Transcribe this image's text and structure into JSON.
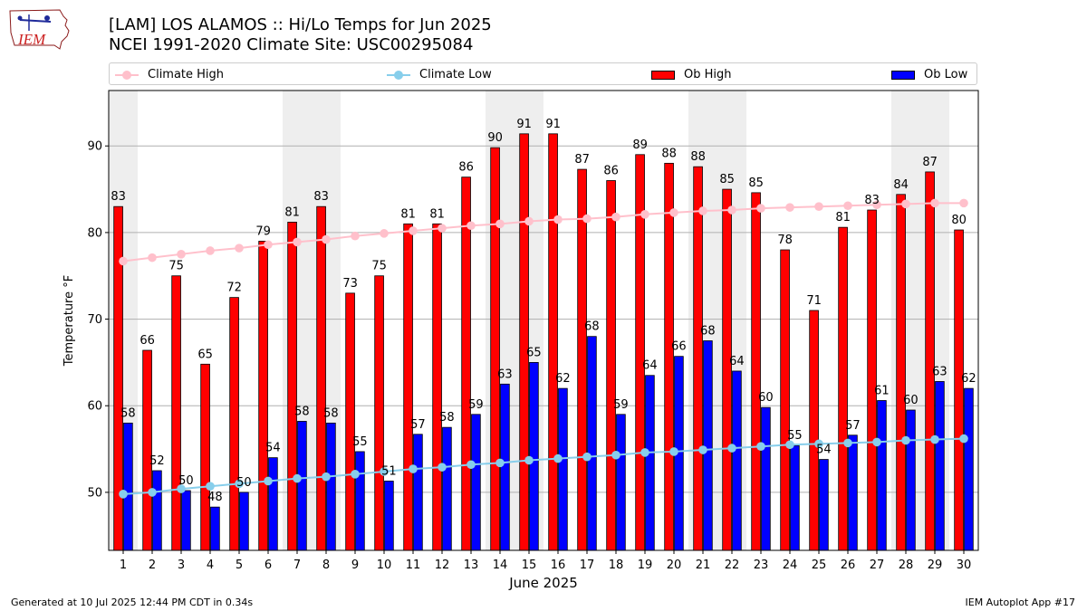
{
  "header": {
    "title_line1": "[LAM] LOS ALAMOS :: Hi/Lo Temps for Jun 2025",
    "title_line2": "NCEI 1991-2020 Climate Site: USC00295084",
    "logo_text": "IEM"
  },
  "legend": {
    "climate_high": "Climate High",
    "climate_low": "Climate Low",
    "ob_high": "Ob High",
    "ob_low": "Ob Low"
  },
  "colors": {
    "ob_high": "#ff0000",
    "ob_low": "#0000ff",
    "climate_high": "#ffc0cb",
    "climate_low": "#87ceeb",
    "weekend_band": "#eeeeee",
    "grid": "#b0b0b0"
  },
  "footer": {
    "generated": "Generated at 10 Jul 2025 12:44 PM CDT in 0.34s",
    "app": "IEM Autoplot App #17"
  },
  "chart_data": {
    "type": "bar",
    "xlabel": "June 2025",
    "ylabel": "Temperature °F",
    "ylim": [
      43.3,
      96.4
    ],
    "yticks": [
      50,
      60,
      70,
      80,
      90
    ],
    "grid": "horizontal",
    "legend_position": "top",
    "categories": [
      1,
      2,
      3,
      4,
      5,
      6,
      7,
      8,
      9,
      10,
      11,
      12,
      13,
      14,
      15,
      16,
      17,
      18,
      19,
      20,
      21,
      22,
      23,
      24,
      25,
      26,
      27,
      28,
      29,
      30
    ],
    "shaded_days": [
      1,
      7,
      8,
      14,
      15,
      21,
      22,
      28,
      29
    ],
    "series": [
      {
        "name": "Ob High",
        "type": "bar",
        "values": [
          83,
          66.4,
          75,
          64.8,
          72.5,
          79,
          81.2,
          83,
          73,
          75,
          81,
          81,
          86.4,
          89.8,
          91.4,
          91.4,
          87.3,
          86,
          89,
          88,
          87.6,
          85,
          84.6,
          78,
          71,
          80.6,
          82.6,
          84.4,
          87,
          80.3
        ],
        "labels": [
          "83",
          "66",
          "75",
          "65",
          "72",
          "79",
          "81",
          "83",
          "73",
          "75",
          "81",
          "81",
          "86",
          "90",
          "91",
          "91",
          "87",
          "86",
          "89",
          "88",
          "88",
          "85",
          "85",
          "78",
          "71",
          "81",
          "83",
          "84",
          "87",
          "80"
        ]
      },
      {
        "name": "Ob Low",
        "type": "bar",
        "values": [
          58,
          52.5,
          50.2,
          48.3,
          50,
          54,
          58.2,
          58,
          54.7,
          51.3,
          56.7,
          57.5,
          59,
          62.5,
          65,
          62,
          68,
          59,
          63.5,
          65.7,
          67.5,
          64,
          59.8,
          55.4,
          53.8,
          56.6,
          60.6,
          59.5,
          62.8,
          62
        ],
        "labels": [
          "58",
          "52",
          "50",
          "48",
          "50",
          "54",
          "58",
          "58",
          "55",
          "51",
          "57",
          "58",
          "59",
          "63",
          "65",
          "62",
          "68",
          "59",
          "64",
          "66",
          "68",
          "64",
          "60",
          "55",
          "54",
          "57",
          "61",
          "60",
          "63",
          "62"
        ]
      },
      {
        "name": "Climate High",
        "type": "line",
        "values": [
          76.7,
          77.1,
          77.5,
          77.9,
          78.2,
          78.6,
          78.9,
          79.2,
          79.6,
          79.9,
          80.2,
          80.5,
          80.8,
          81.0,
          81.3,
          81.5,
          81.6,
          81.8,
          82.1,
          82.3,
          82.5,
          82.6,
          82.8,
          82.9,
          83.0,
          83.1,
          83.2,
          83.3,
          83.4,
          83.4
        ]
      },
      {
        "name": "Climate Low",
        "type": "line",
        "values": [
          49.8,
          50.0,
          50.4,
          50.7,
          51.0,
          51.3,
          51.6,
          51.8,
          52.1,
          52.4,
          52.7,
          52.9,
          53.2,
          53.4,
          53.7,
          53.9,
          54.1,
          54.3,
          54.6,
          54.7,
          54.9,
          55.1,
          55.3,
          55.5,
          55.6,
          55.7,
          55.8,
          56.0,
          56.1,
          56.2
        ]
      }
    ]
  }
}
